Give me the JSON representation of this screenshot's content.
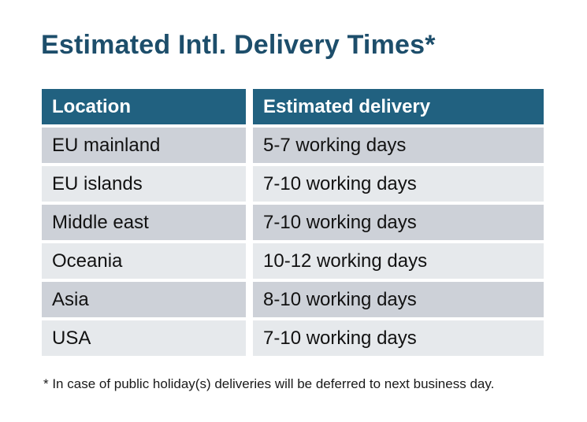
{
  "title": "Estimated Intl. Delivery Times*",
  "table": {
    "headers": [
      "Location",
      "Estimated delivery"
    ],
    "rows": [
      {
        "location": "EU mainland",
        "delivery": "5-7 working days"
      },
      {
        "location": "EU islands",
        "delivery": "7-10 working days"
      },
      {
        "location": "Middle east",
        "delivery": "7-10 working days"
      },
      {
        "location": "Oceania",
        "delivery": "10-12 working days"
      },
      {
        "location": "Asia",
        "delivery": "8-10 working days"
      },
      {
        "location": "USA",
        "delivery": "7-10 working days"
      }
    ]
  },
  "footnote": "* In case of public holiday(s) deliveries will be deferred to next business day.",
  "colors": {
    "background": "#ffffff",
    "title_text": "#1d4e6b",
    "header_bg": "#216180",
    "header_text": "#ffffff",
    "row_dark": "#cdd1d8",
    "row_light": "#e6e9ec",
    "body_text": "#121212",
    "footnote_text": "#1a1a1a"
  }
}
